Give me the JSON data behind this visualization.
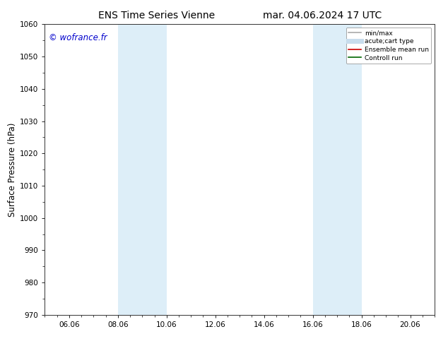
{
  "title_left": "ENS Time Series Vienne",
  "title_right": "mar. 04.06.2024 17 UTC",
  "ylabel": "Surface Pressure (hPa)",
  "ylim": [
    970,
    1060
  ],
  "yticks": [
    970,
    980,
    990,
    1000,
    1010,
    1020,
    1030,
    1040,
    1050,
    1060
  ],
  "x_min": 0.0,
  "x_max": 16.0,
  "xtick_labels": [
    "06.06",
    "08.06",
    "10.06",
    "12.06",
    "14.06",
    "16.06",
    "18.06",
    "20.06"
  ],
  "xtick_positions": [
    1.0,
    3.0,
    5.0,
    7.0,
    9.0,
    11.0,
    13.0,
    15.0
  ],
  "shaded_bands": [
    {
      "x_start": 3.0,
      "x_end": 4.0
    },
    {
      "x_start": 4.0,
      "x_end": 5.0
    },
    {
      "x_start": 11.0,
      "x_end": 12.0
    },
    {
      "x_start": 12.0,
      "x_end": 13.0
    }
  ],
  "shaded_color": "#ddeef8",
  "watermark_text": "© wofrance.fr",
  "watermark_color": "#0000cc",
  "legend_entries": [
    {
      "label": "min/max",
      "color": "#aaaaaa",
      "lw": 1.2
    },
    {
      "label": "acute;cart type",
      "color": "#c8dded",
      "lw": 5
    },
    {
      "label": "Ensemble mean run",
      "color": "#cc0000",
      "lw": 1.2
    },
    {
      "label": "Controll run",
      "color": "#006600",
      "lw": 1.2
    }
  ],
  "bg_color": "#ffffff",
  "title_fontsize": 10,
  "tick_fontsize": 7.5,
  "ylabel_fontsize": 8.5
}
